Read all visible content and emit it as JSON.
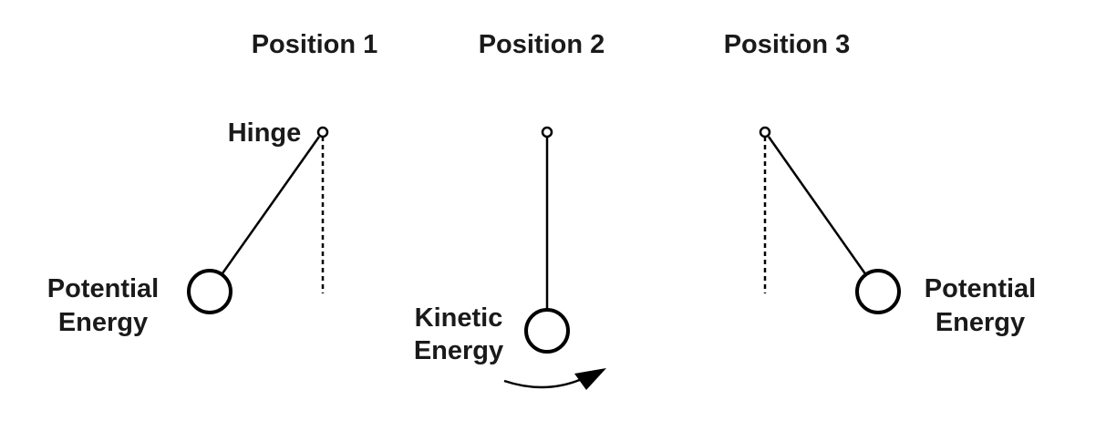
{
  "positions": [
    {
      "title": "Position 1",
      "hinge_label": "Hinge",
      "energy_label_line1": "Potential",
      "energy_label_line2": "Energy"
    },
    {
      "title": "Position 2",
      "energy_label_line1": "Kinetic",
      "energy_label_line2": "Energy"
    },
    {
      "title": "Position 3",
      "energy_label_line1": "Potential",
      "energy_label_line2": "Energy"
    }
  ],
  "colors": {
    "ink": "#000000",
    "text": "#1a1a1a",
    "background": "#ffffff"
  }
}
